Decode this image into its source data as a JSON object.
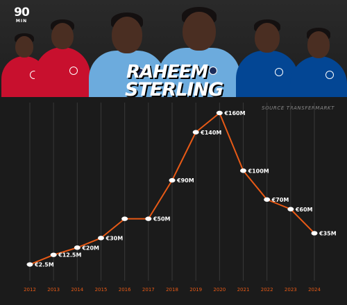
{
  "brand": {
    "logo_top": "90",
    "logo_bottom": "MIN"
  },
  "headline": {
    "first_name": "RAHEEM",
    "last_name": "STERLING"
  },
  "source_note": "SOURCE TRANSFERMARKT",
  "colors": {
    "line": "#e85a16",
    "point": "#ffffff",
    "grid": "#383838",
    "year_label": "#e85a16",
    "value_label": "#ffffff",
    "kit_liverpool": "#c8102e",
    "kit_city": "#6cabdd",
    "kit_chelsea": "#034694"
  },
  "players": [
    {
      "kit": "liverpool"
    },
    {
      "kit": "liverpool"
    },
    {
      "kit": "city"
    },
    {
      "kit": "city"
    },
    {
      "kit": "chelsea"
    },
    {
      "kit": "chelsea"
    }
  ],
  "chart_data": {
    "type": "line",
    "title": "",
    "xlabel": "",
    "ylabel": "",
    "ylim": [
      0,
      160
    ],
    "grid": "vertical",
    "categories": [
      "2012",
      "2013",
      "2014",
      "2015",
      "2016",
      "2017",
      "2018",
      "2019",
      "2020",
      "2021",
      "2022",
      "2023",
      "2024"
    ],
    "series": [
      {
        "values": [
          2.5,
          12.5,
          20,
          30,
          50,
          50,
          90,
          140,
          160,
          100,
          70,
          60,
          35
        ],
        "labels": [
          "€2.5M",
          "€12.5M",
          "€20M",
          "€30M",
          "",
          "€50M",
          "€90M",
          "€140M",
          "€160M",
          "€100M",
          "€70M",
          "€60M",
          "€35M"
        ]
      }
    ]
  }
}
